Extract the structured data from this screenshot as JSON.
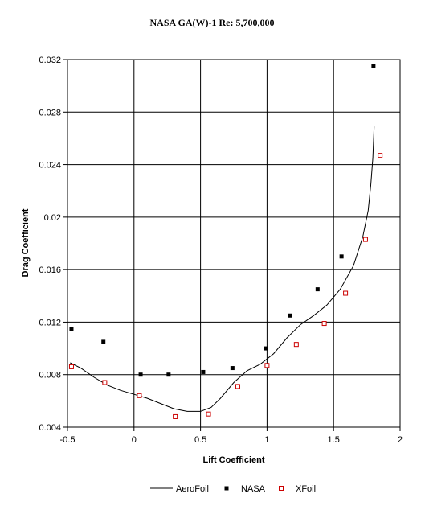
{
  "chart_data": {
    "type": "scatter",
    "title": "NASA GA(W)-1 Re: 5,700,000",
    "xlabel": "Lift Coefficient",
    "ylabel": "Drag Coefficient",
    "xlim": [
      -0.5,
      2
    ],
    "ylim": [
      0.004,
      0.032
    ],
    "xticks": [
      -0.5,
      0,
      0.5,
      1,
      1.5,
      2
    ],
    "xtick_labels": [
      "-0.5",
      "0",
      "0.5",
      "1",
      "1.5",
      "2"
    ],
    "yticks": [
      0.004,
      0.008,
      0.012,
      0.016,
      0.02,
      0.024,
      0.028,
      0.032
    ],
    "ytick_labels": [
      "0.004",
      "0.008",
      "0.012",
      "0.016",
      "0.02",
      "0.024",
      "0.028",
      "0.032"
    ],
    "grid": true,
    "legend": "bottom",
    "series": [
      {
        "name": "AeroFoil",
        "style": "line",
        "color": "#000000",
        "x": [
          -0.48,
          -0.4,
          -0.3,
          -0.2,
          -0.1,
          0.0,
          0.1,
          0.2,
          0.3,
          0.4,
          0.5,
          0.58,
          0.65,
          0.75,
          0.85,
          0.95,
          1.05,
          1.15,
          1.25,
          1.35,
          1.45,
          1.55,
          1.65,
          1.72,
          1.76,
          1.78,
          1.795,
          1.805
        ],
        "y": [
          0.0089,
          0.0085,
          0.0078,
          0.0072,
          0.0068,
          0.0065,
          0.0062,
          0.0058,
          0.0054,
          0.0052,
          0.0052,
          0.0055,
          0.0062,
          0.0074,
          0.0083,
          0.0088,
          0.0096,
          0.0108,
          0.0118,
          0.0125,
          0.0133,
          0.0145,
          0.0163,
          0.0185,
          0.0205,
          0.0225,
          0.0245,
          0.0269
        ]
      },
      {
        "name": "NASA",
        "style": "square-filled",
        "color": "#000000",
        "x": [
          -0.47,
          -0.23,
          0.05,
          0.26,
          0.52,
          0.74,
          0.99,
          1.17,
          1.38,
          1.56,
          1.8
        ],
        "y": [
          0.0115,
          0.0105,
          0.008,
          0.008,
          0.0082,
          0.0085,
          0.01,
          0.0125,
          0.0145,
          0.017,
          0.0315
        ]
      },
      {
        "name": "XFoil",
        "style": "square-open",
        "color": "#cc0000",
        "x": [
          -0.47,
          -0.22,
          0.04,
          0.31,
          0.56,
          0.78,
          1.0,
          1.22,
          1.43,
          1.59,
          1.74,
          1.85
        ],
        "y": [
          0.0086,
          0.0074,
          0.0064,
          0.0048,
          0.005,
          0.0071,
          0.0087,
          0.0103,
          0.0119,
          0.0142,
          0.0183,
          0.0247
        ]
      }
    ]
  }
}
